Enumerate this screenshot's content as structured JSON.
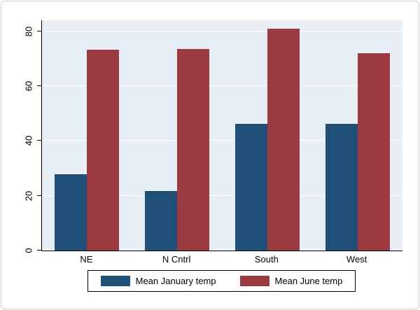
{
  "chart_data": {
    "type": "bar",
    "categories": [
      "NE",
      "N Cntrl",
      "South",
      "West"
    ],
    "series": [
      {
        "name": "Mean January temp",
        "color": "#204f78",
        "values": [
          27.9,
          21.7,
          46.1,
          46.2
        ]
      },
      {
        "name": "Mean June temp",
        "color": "#9c3a42",
        "values": [
          73.4,
          73.5,
          80.9,
          72.1
        ]
      }
    ],
    "title": "",
    "xlabel": "",
    "ylabel": "",
    "yticks": [
      0,
      20,
      40,
      60,
      80
    ],
    "ylim": [
      0,
      84
    ],
    "grid": true,
    "legend_position": "bottom"
  },
  "colors": {
    "plot_background": "#e8eef6",
    "gridline": "#ffffff",
    "axis": "#000000",
    "frame_border": "#c6cdd4",
    "legend_border": "#000000"
  }
}
